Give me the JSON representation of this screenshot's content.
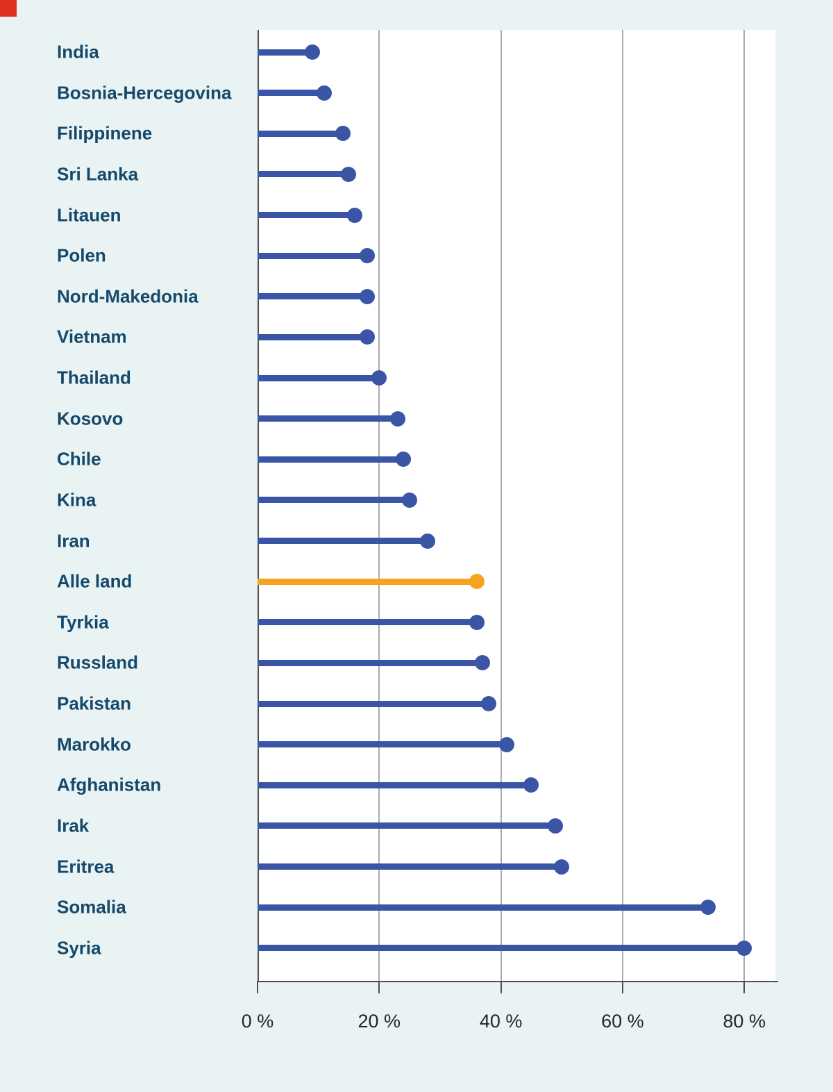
{
  "page": {
    "background_color": "#EAF3F4",
    "corner_mark_color": "#E0301E"
  },
  "chart_data": {
    "type": "bar",
    "style": "lollipop",
    "orientation": "horizontal",
    "title": "",
    "xlabel": "",
    "ylabel": "",
    "unit": "%",
    "categories": [
      "India",
      "Bosnia-Hercegovina",
      "Filippinene",
      "Sri Lanka",
      "Litauen",
      "Polen",
      "Nord-Makedonia",
      "Vietnam",
      "Thailand",
      "Kosovo",
      "Chile",
      "Kina",
      "Iran",
      "Alle land",
      "Tyrkia",
      "Russland",
      "Pakistan",
      "Marokko",
      "Afghanistan",
      "Irak",
      "Eritrea",
      "Somalia",
      "Syria"
    ],
    "values": [
      9,
      11,
      14,
      15,
      16,
      18,
      18,
      18,
      20,
      23,
      24,
      25,
      28,
      36,
      36,
      37,
      38,
      41,
      45,
      49,
      50,
      74,
      80
    ],
    "highlight_category": "Alle land",
    "x_ticks": [
      {
        "label": "0 %",
        "value": 0
      },
      {
        "label": "20 %",
        "value": 20
      },
      {
        "label": "40 %",
        "value": 40
      },
      {
        "label": "60 %",
        "value": 60
      },
      {
        "label": "80 %",
        "value": 80
      }
    ],
    "xlim": [
      0,
      85
    ],
    "grid": true,
    "legend": "none",
    "colors": {
      "series": "#3A54A6",
      "highlight": "#F6A41F",
      "category_label": "#15496B",
      "grid": "#ABABAB",
      "axis": "#4F4F4F",
      "tick_text": "#262626",
      "plot_background": "#FFFFFF"
    }
  }
}
